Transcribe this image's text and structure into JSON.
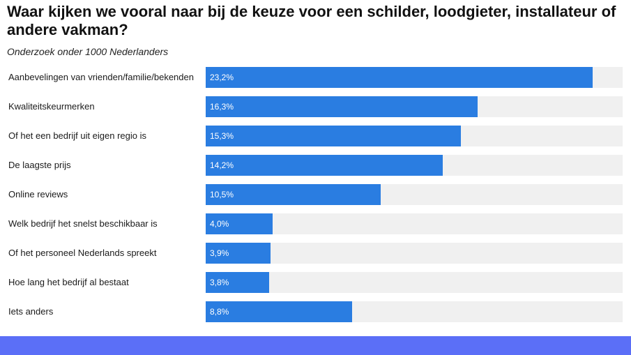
{
  "header": {
    "title": "Waar kijken we vooral naar bij de keuze voor een schilder, loodgieter, installateur of andere vakman?",
    "subtitle": "Onderzoek onder 1000 Nederlanders"
  },
  "colors": {
    "bar": "#2a7de1",
    "track": "#f0f0f0",
    "footer": "#5b6ff7"
  },
  "chart_data": {
    "type": "bar",
    "orientation": "horizontal",
    "title": "Waar kijken we vooral naar bij de keuze voor een schilder, loodgieter, installateur of andere vakman?",
    "subtitle": "Onderzoek onder 1000 Nederlanders",
    "xlim": [
      0,
      25
    ],
    "grid": false,
    "categories": [
      "Aanbevelingen van vrienden/familie/bekenden",
      "Kwaliteitskeurmerken",
      "Of het een bedrijf uit eigen regio is",
      "De laagste prijs",
      "Online reviews",
      "Welk bedrijf het snelst beschikbaar is",
      "Of het personeel Nederlands spreekt",
      "Hoe lang het bedrijf al bestaat",
      "Iets anders"
    ],
    "values": [
      23.2,
      16.3,
      15.3,
      14.2,
      10.5,
      4.0,
      3.9,
      3.8,
      8.8
    ],
    "value_labels": [
      "23,2%",
      "16,3%",
      "15,3%",
      "14,2%",
      "10,5%",
      "4,0%",
      "3,9%",
      "3,8%",
      "8,8%"
    ]
  }
}
